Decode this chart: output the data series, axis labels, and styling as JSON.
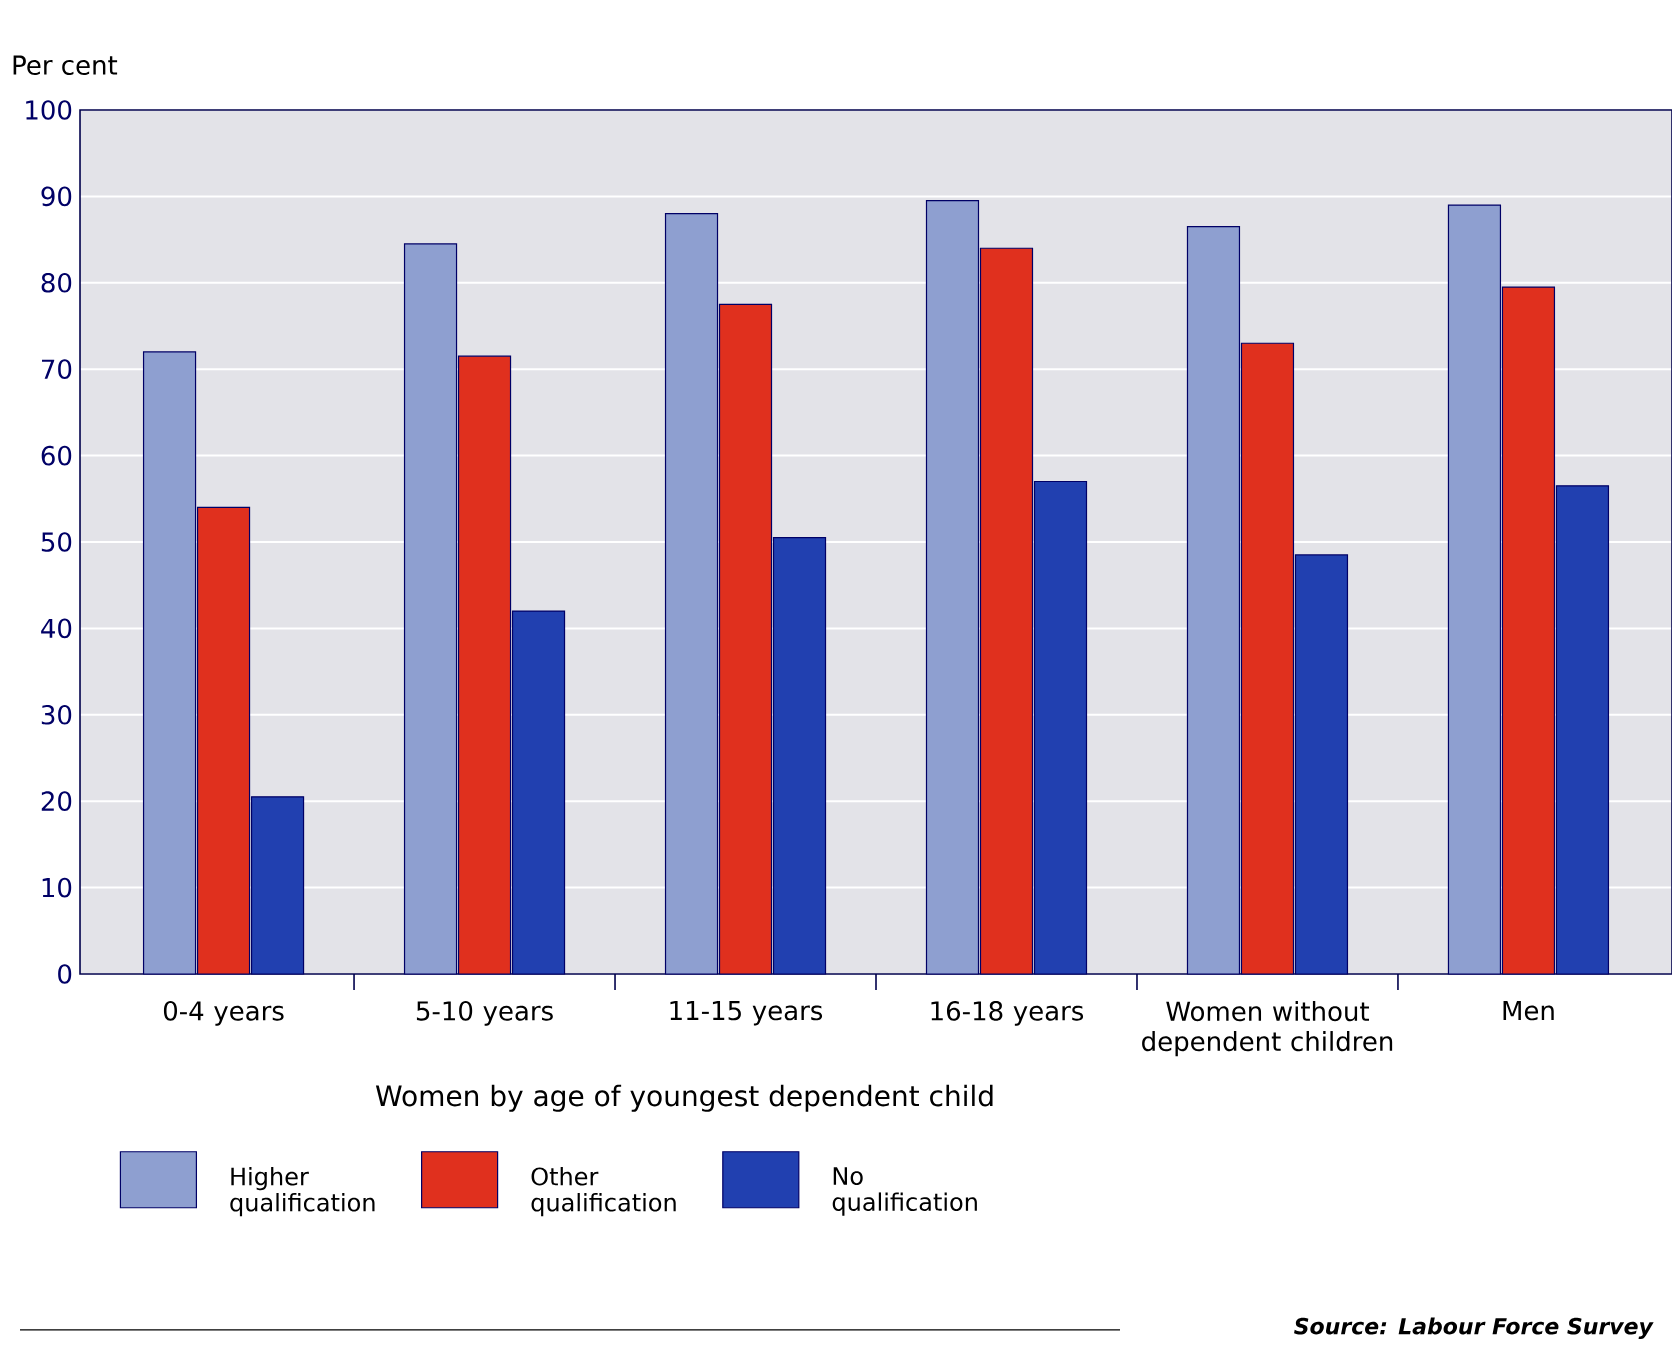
{
  "chart_data": {
    "type": "bar",
    "ylabel": "Per cent",
    "xlabel": "Women by age of youngest dependent child",
    "categories": [
      "0-4 years",
      "5-10 years",
      "11-15 years",
      "16-18 years",
      "Women without dependent children",
      "Men"
    ],
    "series": [
      {
        "name": "Higher qualification",
        "color": "#8e9fd0",
        "values": [
          72,
          84.5,
          88,
          89.5,
          86.5,
          89
        ]
      },
      {
        "name": "Other qualification",
        "color": "#e0301e",
        "values": [
          54,
          71.5,
          77.5,
          84,
          73,
          79.5
        ]
      },
      {
        "name": "No qualification",
        "color": "#2140b0",
        "values": [
          20.5,
          42,
          50.5,
          57,
          48.5,
          56.5
        ]
      }
    ],
    "ylim": [
      0,
      100
    ],
    "yticks": [
      0,
      10,
      20,
      30,
      40,
      50,
      60,
      70,
      80,
      90,
      100
    ],
    "grid": "y",
    "legend": "bottom",
    "annotations": [
      "Source: Labour Force Survey"
    ]
  }
}
